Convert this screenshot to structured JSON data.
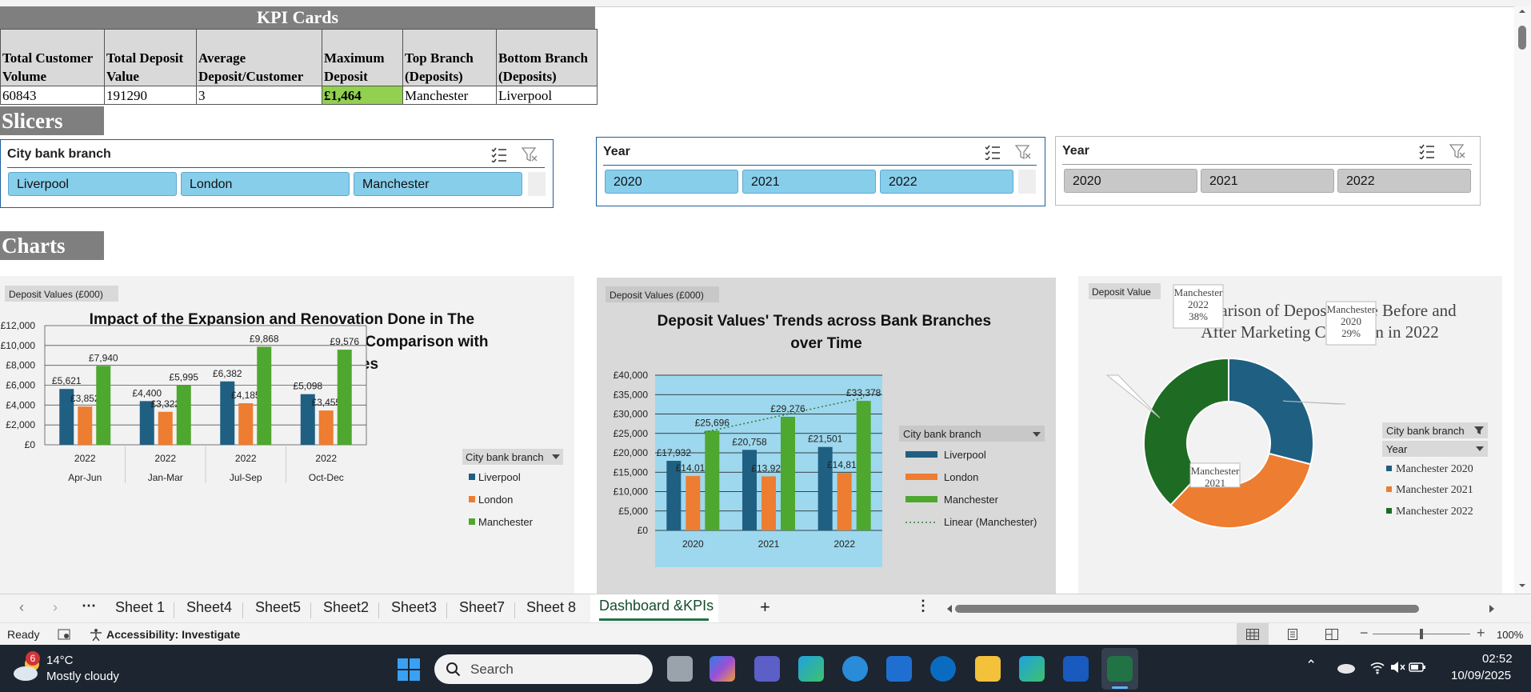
{
  "kpi": {
    "title": "KPI Cards",
    "headers": [
      "Total Customer Volume",
      "Total Deposit Value",
      "Average Deposit/Customer",
      "Maximum Deposit",
      "Top Branch (Deposits)",
      "Bottom Branch (Deposits)"
    ],
    "values": [
      "60843",
      "191290",
      "3",
      "£1,464",
      "Manchester",
      "Liverpool"
    ],
    "highlight_color": "#92d050"
  },
  "sections": {
    "slicers": "Slicers",
    "charts": "Charts"
  },
  "slicers": [
    {
      "title": "City bank branch",
      "items": [
        "Liverpool",
        "London",
        "Manchester"
      ],
      "state": "selected"
    },
    {
      "title": "Year",
      "items": [
        "2020",
        "2021",
        "2022"
      ],
      "state": "selected"
    },
    {
      "title": "Year",
      "items": [
        "2020",
        "2021",
        "2022"
      ],
      "state": "unselected"
    }
  ],
  "colors": {
    "liverpool": "#1f5f82",
    "london": "#ed7d31",
    "manchester": "#4ea72e",
    "manchester2022": "#1e6b24",
    "slicer_selected": "#87ceeb",
    "accent_excel": "#217346"
  },
  "chart_data": [
    {
      "type": "bar",
      "field_button": "Deposit Values (£000)",
      "title": "Impact of the Expansion and Renovation Done in The Manchester Branch of The Bank, and in Comparison with Other Two Bank Branches",
      "categories": [
        [
          "2022",
          "Apr-Jun"
        ],
        [
          "2022",
          "Jan-Mar"
        ],
        [
          "2022",
          "Jul-Sep"
        ],
        [
          "2022",
          "Oct-Dec"
        ]
      ],
      "series": [
        {
          "name": "Liverpool",
          "values": [
            5621,
            4400,
            6382,
            5098
          ],
          "labels": [
            "£5,621",
            "£4,400",
            "£6,382",
            "£5,098"
          ]
        },
        {
          "name": "London",
          "values": [
            3852,
            3322,
            4185,
            3455
          ],
          "labels": [
            "£3,852",
            "£3,322",
            "£4,185",
            "£3,455"
          ]
        },
        {
          "name": "Manchester",
          "values": [
            7940,
            5995,
            9868,
            9576
          ],
          "labels": [
            "£7,940",
            "£5,995",
            "£9,868",
            "£9,576"
          ]
        }
      ],
      "ylim": [
        0,
        12000
      ],
      "yticks": [
        "£0",
        "£2,000",
        "£4,000",
        "£6,000",
        "£8,000",
        "£10,000",
        "£12,000"
      ],
      "legend_title": "City bank branch",
      "grid": true
    },
    {
      "type": "bar",
      "field_button": "Deposit Values (£000)",
      "title": "Deposit Values' Trends across Bank Branches over Time",
      "categories": [
        "2020",
        "2021",
        "2022"
      ],
      "series": [
        {
          "name": "Liverpool",
          "values": [
            17932,
            20758,
            21501
          ],
          "labels": [
            "£17,932",
            "£20,758",
            "£21,501"
          ]
        },
        {
          "name": "London",
          "values": [
            14012,
            13925,
            14814
          ],
          "labels": [
            "£14,012",
            "£13,925",
            "£14,814"
          ]
        },
        {
          "name": "Manchester",
          "values": [
            25696,
            29276,
            33378
          ],
          "labels": [
            "£25,696",
            "£29,276",
            "£33,378"
          ]
        }
      ],
      "trendline": "Linear (Manchester)",
      "ylim": [
        0,
        40000
      ],
      "yticks": [
        "£0",
        "£5,000",
        "£10,000",
        "£15,000",
        "£20,000",
        "£25,000",
        "£30,000",
        "£35,000",
        "£40,000"
      ],
      "legend_title": "City bank branch",
      "grid": true
    },
    {
      "type": "pie",
      "field_button": "Deposit Value",
      "title": "Comparison of Deposit Value Before and After Marketing Campaign in 2022",
      "slices": [
        {
          "name": "Manchester 2020",
          "value": 29,
          "label": [
            "Manchester",
            "2020",
            "29%"
          ]
        },
        {
          "name": "Manchester 2021",
          "value": 33,
          "label": [
            "Manchester",
            "2021"
          ]
        },
        {
          "name": "Manchester 2022",
          "value": 38,
          "label": [
            "Manchester",
            "2022",
            "38%"
          ]
        }
      ],
      "filter_labels": [
        "City bank branch",
        "Year"
      ],
      "legend": [
        "Manchester 2020",
        "Manchester 2021",
        "Manchester 2022"
      ]
    }
  ],
  "sheet_tabs": [
    "Sheet 1",
    "Sheet4",
    "Sheet5",
    "Sheet2",
    "Sheet3",
    "Sheet7",
    "Sheet 8",
    "Dashboard &KPIs"
  ],
  "active_tab": "Dashboard &KPIs",
  "status": {
    "ready": "Ready",
    "accessibility": "Accessibility: Investigate",
    "zoom": "100%"
  },
  "taskbar": {
    "temp": "14°C",
    "weather": "Mostly cloudy",
    "badge": "6",
    "search": "Search",
    "time": "02:52",
    "date": "10/09/2025"
  }
}
